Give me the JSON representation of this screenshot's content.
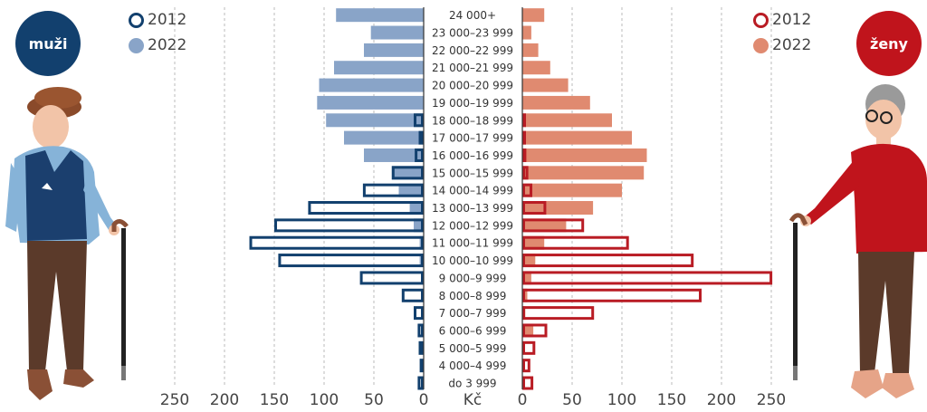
{
  "badges": {
    "men": "muži",
    "women": "ženy"
  },
  "legend": {
    "hollow": "2012",
    "filled": "2022"
  },
  "unit_label": "Kč",
  "colors": {
    "men_2012": "#12406e",
    "men_2022": "#89a4c8",
    "women_2012": "#b91c24",
    "women_2022": "#e08a70",
    "men_badge": "#12406e",
    "women_badge": "#c0141c"
  },
  "chart_data": {
    "type": "bar",
    "orientation": "horizontal-population-pyramid",
    "categories": [
      "24 000+",
      "23 000–23 999",
      "22 000–22 999",
      "21 000–21 999",
      "20 000–20 999",
      "19 000–19 999",
      "18 000–18 999",
      "17 000–17 999",
      "16 000–16 999",
      "15 000–15 999",
      "14 000–14 999",
      "13 000–13 999",
      "12 000–12 999",
      "11 000–11 999",
      "10 000–10 999",
      "9 000–9 999",
      "8 000–8 999",
      "7 000–7 999",
      "6 000–6 999",
      "5 000–5 999",
      "4 000–4 999",
      "do 3 999"
    ],
    "groups": [
      {
        "name": "muži",
        "series": [
          {
            "name": "2012",
            "style": "outline",
            "values": [
              0,
              0,
              0,
              0,
              0,
              0,
              10,
              5,
              9,
              32,
              61,
              116,
              150,
              175,
              146,
              64,
              22,
              10,
              6,
              5,
              4,
              6
            ]
          },
          {
            "name": "2022",
            "style": "fill",
            "values": [
              88,
              53,
              60,
              90,
              105,
              107,
              98,
              80,
              60,
              32,
              25,
              14,
              10,
              4,
              4,
              0,
              0,
              0,
              0,
              0,
              0,
              0
            ]
          }
        ]
      },
      {
        "name": "ženy",
        "series": [
          {
            "name": "2012",
            "style": "outline",
            "values": [
              0,
              0,
              0,
              0,
              0,
              0,
              3,
              2,
              4,
              6,
              10,
              24,
              62,
              107,
              172,
              251,
              180,
              72,
              25,
              13,
              8,
              11
            ]
          },
          {
            "name": "2022",
            "style": "fill",
            "values": [
              22,
              9,
              16,
              28,
              46,
              68,
              90,
              110,
              125,
              122,
              100,
              71,
              44,
              22,
              13,
              9,
              5,
              3,
              11,
              0,
              0,
              0
            ]
          }
        ]
      }
    ],
    "x_ticks": [
      250,
      200,
      150,
      100,
      50,
      0
    ],
    "xlim": [
      0,
      250
    ],
    "grid": true
  }
}
